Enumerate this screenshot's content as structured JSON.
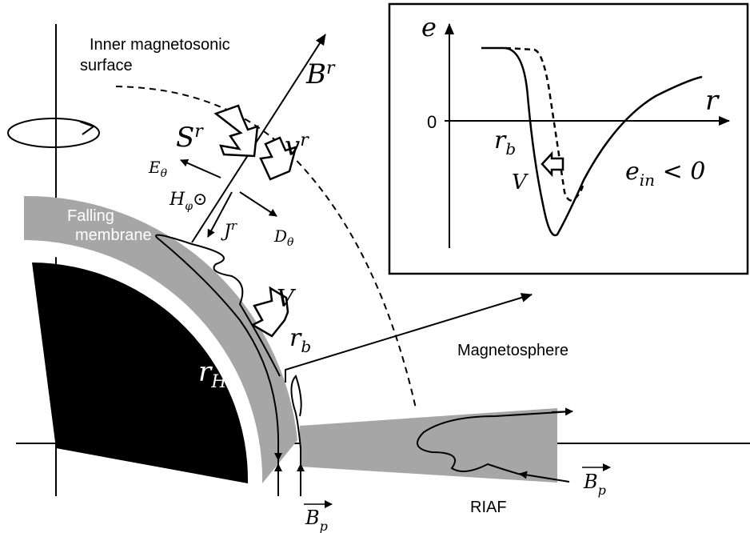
{
  "labels": {
    "inner_surface_line1": "Inner magnetosonic",
    "inner_surface_line2": "surface",
    "b_r": "B^r",
    "s_r": "S^r",
    "v_r": "v^r",
    "e_theta": "E_θ",
    "h_phi": "H_φ⊙",
    "j_r": "J^r",
    "d_theta": "D_θ",
    "falling_line1": "Falling",
    "falling_line2": "membrane",
    "v_big": "V",
    "r_b": "r_b",
    "r_h": "r_H",
    "magnetosphere": "Magnetosphere",
    "riaf": "RIAF",
    "bp": "B_p"
  },
  "inset": {
    "y_axis": "e",
    "x_axis": "r",
    "zero": "0",
    "r_b": "r_b",
    "v": "V",
    "e_in": "e_in < 0"
  }
}
